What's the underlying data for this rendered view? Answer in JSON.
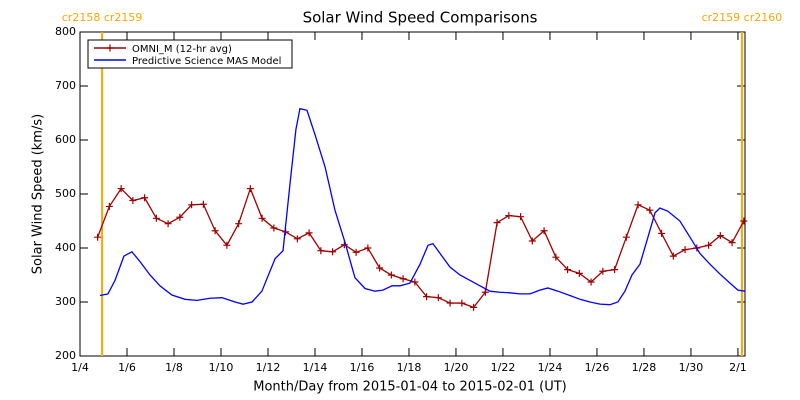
{
  "chart_data": {
    "type": "line",
    "title": "Solar Wind Speed Comparisons",
    "x_label": "Month/Day from 2015-01-04 to 2015-02-01 (UT)",
    "y_label": "Solar Wind Speed (km/s)",
    "xlim": [
      0,
      28.3
    ],
    "ylim": [
      200,
      800
    ],
    "xticks": [
      {
        "value": 0,
        "label": "1/4"
      },
      {
        "value": 2,
        "label": "1/6"
      },
      {
        "value": 4,
        "label": "1/8"
      },
      {
        "value": 6,
        "label": "1/10"
      },
      {
        "value": 8,
        "label": "1/12"
      },
      {
        "value": 10,
        "label": "1/14"
      },
      {
        "value": 12,
        "label": "1/16"
      },
      {
        "value": 14,
        "label": "1/18"
      },
      {
        "value": 16,
        "label": "1/20"
      },
      {
        "value": 18,
        "label": "1/22"
      },
      {
        "value": 20,
        "label": "1/24"
      },
      {
        "value": 22,
        "label": "1/26"
      },
      {
        "value": 24,
        "label": "1/28"
      },
      {
        "value": 26,
        "label": "1/30"
      },
      {
        "value": 28,
        "label": "2/1"
      }
    ],
    "yticks": [
      200,
      300,
      400,
      500,
      600,
      700,
      800
    ],
    "legend": "upper left",
    "annotations": [
      {
        "x": 0.94,
        "text": "cr2158 cr2159",
        "color": "#ffa500"
      },
      {
        "x": 28.17,
        "text": "cr2159 cr2160",
        "color": "#ffa500"
      }
    ],
    "series": [
      {
        "name": "OMNI_M (12-hr avg)",
        "color": "#a00000",
        "marker": "+",
        "x": [
          0.75,
          1.25,
          1.75,
          2.25,
          2.75,
          3.25,
          3.75,
          4.25,
          4.75,
          5.25,
          5.75,
          6.25,
          6.75,
          7.25,
          7.75,
          8.25,
          8.75,
          9.25,
          9.75,
          10.25,
          10.75,
          11.25,
          11.75,
          12.25,
          12.75,
          13.25,
          13.75,
          14.25,
          14.75,
          15.25,
          15.75,
          16.25,
          16.75,
          17.25,
          17.75,
          18.25,
          18.75,
          19.25,
          19.75,
          20.25,
          20.75,
          21.25,
          21.75,
          22.25,
          22.75,
          23.25,
          23.75,
          24.25,
          24.75,
          25.25,
          25.75,
          26.25,
          26.75,
          27.25,
          27.75,
          28.25
        ],
        "values": [
          420,
          477,
          510,
          488,
          493,
          455,
          445,
          457,
          480,
          481,
          432,
          405,
          445,
          510,
          455,
          437,
          430,
          417,
          428,
          395,
          393,
          406,
          392,
          400,
          363,
          350,
          343,
          337,
          310,
          308,
          298,
          298,
          290,
          318,
          447,
          460,
          458,
          413,
          432,
          383,
          360,
          353,
          337,
          357,
          360,
          420,
          480,
          470,
          427,
          385,
          397,
          400,
          405,
          423,
          410,
          450
        ]
      },
      {
        "name": "Predictive Science MAS Model",
        "color": "#0000ff",
        "x": [
          0.85,
          1.19,
          1.49,
          1.87,
          2.21,
          2.55,
          2.98,
          3.4,
          3.91,
          4.47,
          4.98,
          5.53,
          6.04,
          6.6,
          6.94,
          7.32,
          7.74,
          8.3,
          8.64,
          8.94,
          9.19,
          9.36,
          9.66,
          10,
          10.43,
          10.85,
          11.28,
          11.7,
          12.13,
          12.55,
          12.89,
          13.28,
          13.62,
          14.04,
          14.47,
          14.81,
          15.02,
          15.32,
          15.74,
          16.17,
          16.6,
          17.02,
          17.45,
          17.87,
          18.3,
          18.72,
          19.15,
          19.57,
          19.91,
          20.34,
          20.85,
          21.28,
          21.7,
          22.13,
          22.55,
          22.89,
          23.19,
          23.49,
          23.83,
          24.17,
          24.47,
          24.68,
          25.02,
          25.53,
          25.96,
          26.38,
          26.81,
          27.23,
          27.66,
          28,
          28.3
        ],
        "values": [
          312,
          315,
          340,
          385,
          393,
          375,
          350,
          330,
          313,
          305,
          303,
          307,
          308,
          300,
          296,
          300,
          320,
          380,
          395,
          520,
          620,
          658,
          655,
          610,
          550,
          470,
          410,
          345,
          325,
          320,
          322,
          330,
          330,
          335,
          370,
          405,
          408,
          390,
          365,
          350,
          340,
          330,
          320,
          318,
          317,
          315,
          315,
          322,
          326,
          320,
          312,
          305,
          300,
          296,
          295,
          300,
          320,
          350,
          370,
          420,
          465,
          474,
          468,
          450,
          420,
          390,
          370,
          352,
          335,
          322,
          320
        ]
      }
    ]
  }
}
